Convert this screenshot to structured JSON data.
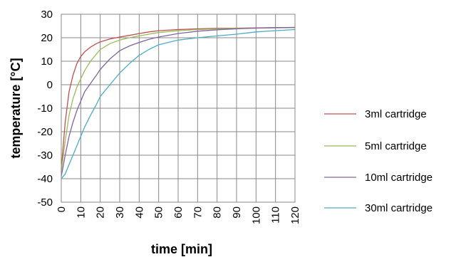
{
  "chart_data": {
    "type": "line",
    "xlabel": "time [min]",
    "ylabel": "temperature [°C]",
    "xlim": [
      0,
      120
    ],
    "ylim": [
      -50,
      30
    ],
    "x_ticks": [
      "0",
      "10",
      "20",
      "30",
      "40",
      "50",
      "60",
      "70",
      "80",
      "90",
      "100",
      "110",
      "120"
    ],
    "y_ticks": [
      "30",
      "20",
      "10",
      "0",
      "-10",
      "-20",
      "-30",
      "-40",
      "-50"
    ],
    "grid": true,
    "legend": "right",
    "x": [
      0,
      2,
      4,
      6,
      8,
      10,
      12,
      15,
      18,
      20,
      25,
      30,
      35,
      40,
      45,
      50,
      60,
      70,
      80,
      90,
      100,
      110,
      120
    ],
    "series": [
      {
        "name": "3ml cartridge",
        "color": "#c0504d",
        "values": [
          -36,
          -16,
          -3,
          4,
          9,
          12,
          14,
          16,
          17.5,
          18.2,
          19.5,
          20.3,
          21,
          21.8,
          22.5,
          23,
          23.5,
          23.8,
          24,
          24.1,
          24.2,
          24.3,
          24.4
        ]
      },
      {
        "name": "5ml cartridge",
        "color": "#9bbb59",
        "values": [
          -37,
          -24,
          -13,
          -6,
          -1,
          2.5,
          6,
          10,
          13,
          15,
          17.5,
          19,
          20,
          20.8,
          21.5,
          22.2,
          23,
          23.5,
          23.8,
          24,
          24.1,
          24.2,
          24.3
        ]
      },
      {
        "name": "10ml cartridge",
        "color": "#8064a2",
        "values": [
          -39,
          -30,
          -22,
          -16,
          -11,
          -7,
          -3,
          0.5,
          4,
          6.5,
          11,
          14.5,
          16.5,
          18,
          19.3,
          20.3,
          21.8,
          22.8,
          23.4,
          23.8,
          24.1,
          24.3,
          24.4
        ]
      },
      {
        "name": "30ml cartridge",
        "color": "#4bacc6",
        "values": [
          -40,
          -38,
          -34,
          -30,
          -26,
          -22,
          -18,
          -13,
          -8.5,
          -5,
          0,
          5,
          9,
          12.5,
          15,
          17,
          19,
          20,
          20.8,
          21.5,
          22.5,
          23,
          23.5
        ]
      }
    ]
  }
}
